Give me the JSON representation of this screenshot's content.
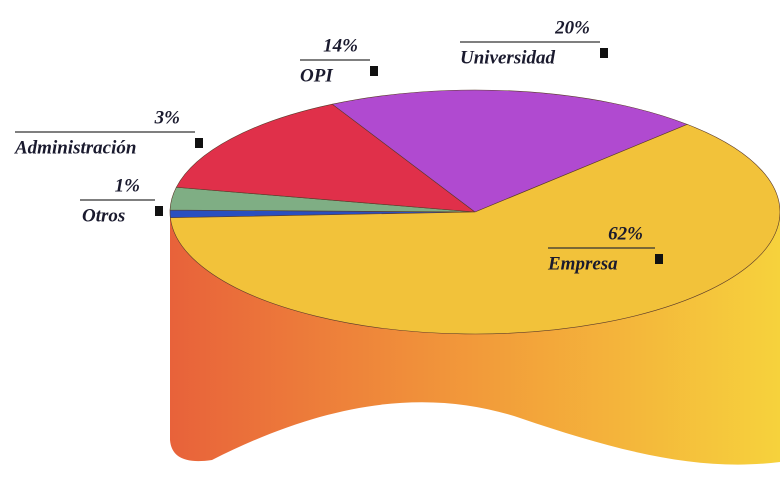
{
  "chart_data": {
    "type": "pie",
    "categories": [
      "Otros",
      "Administración",
      "OPI",
      "Universidad",
      "Empresa"
    ],
    "values": [
      1,
      3,
      14,
      20,
      62
    ],
    "value_labels": [
      "1%",
      "3%",
      "14%",
      "20%",
      "62%"
    ],
    "colors": [
      "#2a4fc0",
      "#7fae84",
      "#e0304a",
      "#b04ad0",
      "#f2c23a"
    ]
  }
}
